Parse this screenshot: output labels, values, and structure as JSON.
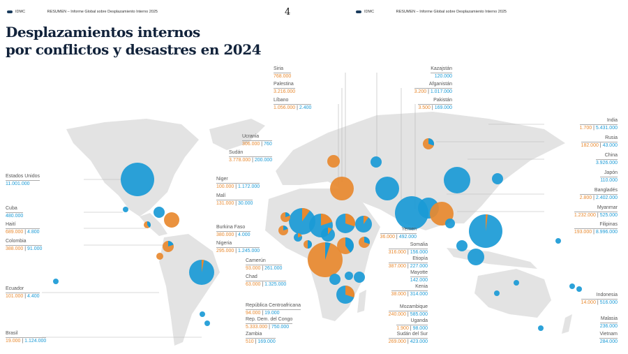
{
  "header": {
    "left_logo": "IDMC",
    "left_text": "RESUMEN – Informe Global sobre Desplazamiento Interno 2025",
    "page_number": "4",
    "right_logo": "IDMC",
    "right_text": "RESUMEN – Informe Global sobre Desplazamiento Interno 2025"
  },
  "title": {
    "line1": "Desplazamientos internos",
    "line2": "por conflictos y desastres en 2024"
  },
  "colors": {
    "conflict": "#e8892f",
    "disaster": "#1a9ad6",
    "land": "#e3e3e3"
  },
  "countries": [
    {
      "name": "Estados Unidos",
      "disaster": "11.001.000"
    },
    {
      "name": "Cuba",
      "disaster": "480.000"
    },
    {
      "name": "Haití",
      "conflict": "689.000",
      "disaster": "4.800"
    },
    {
      "name": "Colombia",
      "conflict": "388.000",
      "disaster": "91.000"
    },
    {
      "name": "Ecuador",
      "conflict": "101.000",
      "disaster": "4.400"
    },
    {
      "name": "Brasil",
      "conflict": "19.000",
      "disaster": "1.124.000"
    },
    {
      "name": "Niger",
      "conflict": "100.000",
      "disaster": "1.172.000"
    },
    {
      "name": "Malí",
      "conflict": "131.000",
      "disaster": "30.000"
    },
    {
      "name": "Burkina Faso",
      "conflict": "380.000",
      "disaster": "4.000"
    },
    {
      "name": "Nigeria",
      "conflict": "295.000",
      "disaster": "1.245.000"
    },
    {
      "name": "Camerún",
      "conflict": "93.000",
      "disaster": "261.000"
    },
    {
      "name": "Chad",
      "conflict": "63.000",
      "disaster": "1.325.000"
    },
    {
      "name": "República Centroafricana",
      "conflict": "94.000",
      "disaster": "19.000"
    },
    {
      "name": "Rep. Dem. del Congo",
      "conflict": "5.333.000",
      "disaster": "750.000"
    },
    {
      "name": "Zambia",
      "conflict": "510",
      "disaster": "169.000"
    },
    {
      "name": "Ucrania",
      "conflict": "306.000",
      "disaster": "760"
    },
    {
      "name": "Sudán",
      "conflict": "3.778.000",
      "disaster": "200.000"
    },
    {
      "name": "Siria",
      "conflict": "768.000"
    },
    {
      "name": "Palestina",
      "conflict": "3.216.000"
    },
    {
      "name": "Líbano",
      "conflict": "1.056.000",
      "disaster": "2.400"
    },
    {
      "name": "Kazajstán",
      "disaster": "120.000"
    },
    {
      "name": "Afganistán",
      "conflict": "3.200",
      "disaster": "1.017.000"
    },
    {
      "name": "Pakistán",
      "conflict": "3.500",
      "disaster": "169.000"
    },
    {
      "name": "Yemen",
      "conflict": "36.000",
      "disaster": "492.000"
    },
    {
      "name": "Somalia",
      "conflict": "316.000",
      "disaster": "156.000"
    },
    {
      "name": "Etiopía",
      "conflict": "387.000",
      "disaster": "227.000"
    },
    {
      "name": "Mayotte",
      "disaster": "142.000"
    },
    {
      "name": "Kenia",
      "conflict": "38.000",
      "disaster": "314.000"
    },
    {
      "name": "Mozambique",
      "conflict": "240.000",
      "disaster": "585.000"
    },
    {
      "name": "Uganda",
      "conflict": "1.900",
      "disaster": "98.000"
    },
    {
      "name": "Sudán del Sur",
      "conflict": "269.000",
      "disaster": "423.000"
    },
    {
      "name": "India",
      "conflict": "1.700",
      "disaster": "5.431.000"
    },
    {
      "name": "Rusia",
      "conflict": "182.000",
      "disaster": "43.000"
    },
    {
      "name": "China",
      "disaster": "3.926.000"
    },
    {
      "name": "Japón",
      "disaster": "110.000"
    },
    {
      "name": "Bangladés",
      "conflict": "2.800",
      "disaster": "2.402.000"
    },
    {
      "name": "Myanmar",
      "conflict": "1.232.000",
      "disaster": "525.000"
    },
    {
      "name": "Filipinas",
      "conflict": "193.000",
      "disaster": "8.996.000"
    },
    {
      "name": "Indonesia",
      "conflict": "14.000",
      "disaster": "516.000"
    },
    {
      "name": "Malasia",
      "disaster": "236.000"
    },
    {
      "name": "Vietnam",
      "disaster": "284.000"
    }
  ]
}
